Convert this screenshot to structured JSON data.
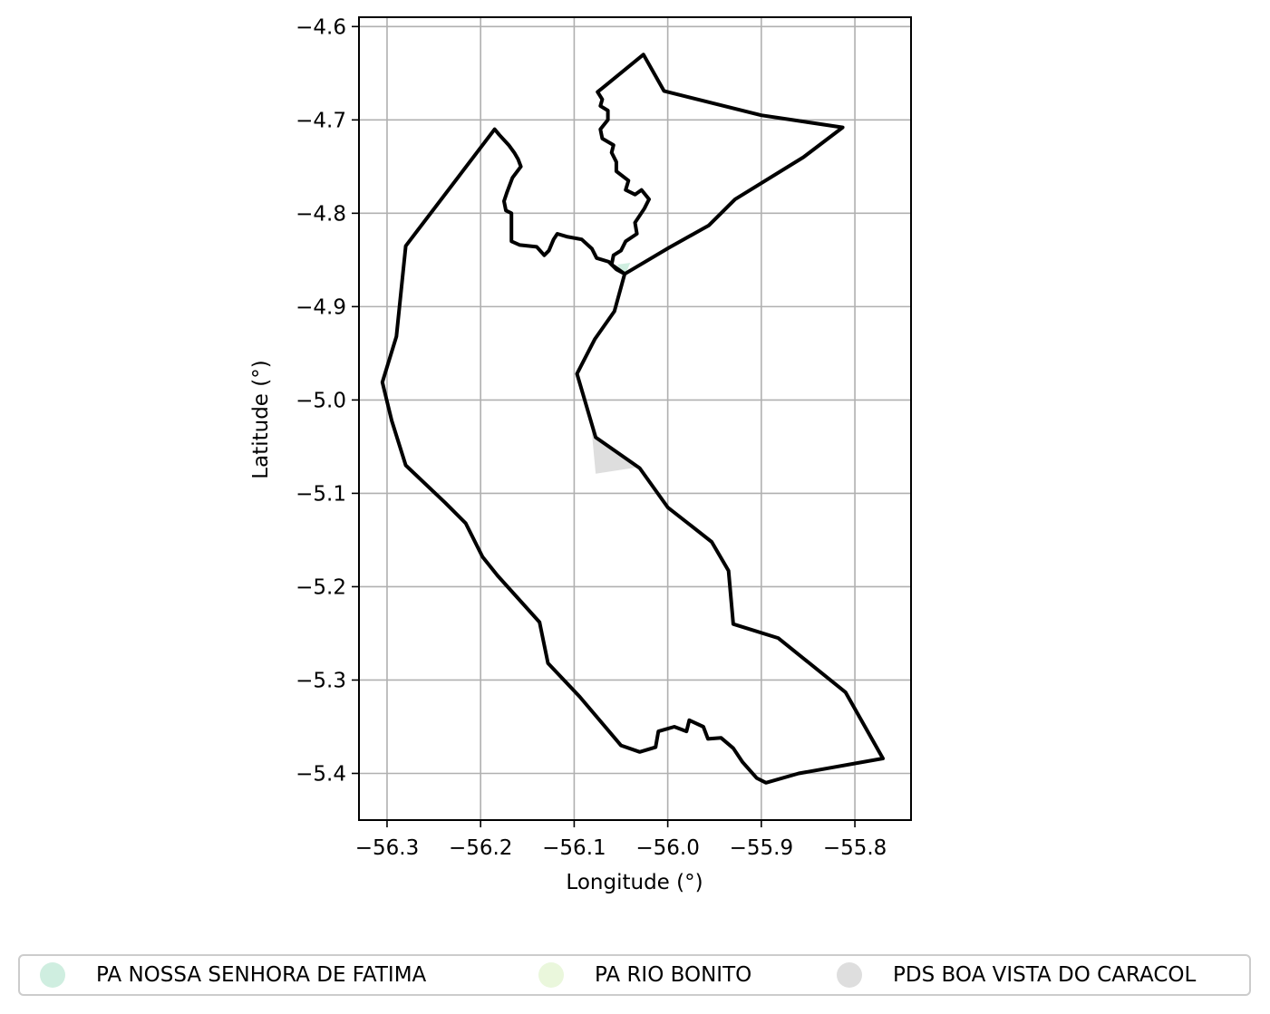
{
  "chart_data": {
    "type": "map",
    "xlabel": "Longitude (°)",
    "ylabel": "Latitude (°)",
    "xlim": [
      -56.33,
      -55.74
    ],
    "ylim": [
      -5.45,
      -4.59
    ],
    "x_ticks": [
      -56.3,
      -56.2,
      -56.1,
      -56.0,
      -55.9,
      -55.8
    ],
    "y_ticks": [
      -4.6,
      -4.7,
      -4.8,
      -4.9,
      -5.0,
      -5.1,
      -5.2,
      -5.3,
      -5.4
    ],
    "x_tick_labels": [
      "−56.3",
      "−56.2",
      "−56.1",
      "−56.0",
      "−55.9",
      "−55.8"
    ],
    "y_tick_labels": [
      "−4.6",
      "−4.7",
      "−4.8",
      "−4.9",
      "−5.0",
      "−5.1",
      "−5.2",
      "−5.3",
      "−5.4"
    ],
    "grid": true,
    "legend_position": "bottom",
    "boundaries": [
      {
        "name": "north",
        "coords": [
          [
            -56.07,
            -4.666
          ],
          [
            -56.026,
            -4.63
          ],
          [
            -56.004,
            -4.669
          ],
          [
            -55.9,
            -4.695
          ],
          [
            -55.813,
            -4.708
          ],
          [
            -55.855,
            -4.74
          ],
          [
            -55.928,
            -4.785
          ],
          [
            -55.956,
            -4.813
          ],
          [
            -55.999,
            -4.837
          ],
          [
            -56.046,
            -4.865
          ],
          [
            -56.06,
            -4.855
          ],
          [
            -56.058,
            -4.845
          ],
          [
            -56.05,
            -4.84
          ],
          [
            -56.045,
            -4.83
          ],
          [
            -56.033,
            -4.822
          ],
          [
            -56.035,
            -4.81
          ],
          [
            -56.025,
            -4.795
          ],
          [
            -56.02,
            -4.785
          ],
          [
            -56.028,
            -4.775
          ],
          [
            -56.035,
            -4.78
          ],
          [
            -56.045,
            -4.775
          ],
          [
            -56.042,
            -4.765
          ],
          [
            -56.055,
            -4.755
          ],
          [
            -56.055,
            -4.745
          ],
          [
            -56.06,
            -4.735
          ],
          [
            -56.058,
            -4.727
          ],
          [
            -56.07,
            -4.72
          ],
          [
            -56.072,
            -4.71
          ],
          [
            -56.064,
            -4.7
          ],
          [
            -56.064,
            -4.69
          ],
          [
            -56.072,
            -4.685
          ],
          [
            -56.07,
            -4.678
          ],
          [
            -56.075,
            -4.67
          ],
          [
            -56.07,
            -4.666
          ]
        ]
      },
      {
        "name": "main",
        "coords": [
          [
            -56.046,
            -4.865
          ],
          [
            -56.055,
            -4.86
          ],
          [
            -56.063,
            -4.852
          ],
          [
            -56.076,
            -4.848
          ],
          [
            -56.081,
            -4.838
          ],
          [
            -56.092,
            -4.828
          ],
          [
            -56.108,
            -4.825
          ],
          [
            -56.118,
            -4.822
          ],
          [
            -56.122,
            -4.828
          ],
          [
            -56.127,
            -4.84
          ],
          [
            -56.132,
            -4.845
          ],
          [
            -56.14,
            -4.836
          ],
          [
            -56.158,
            -4.834
          ],
          [
            -56.167,
            -4.83
          ],
          [
            -56.167,
            -4.8
          ],
          [
            -56.173,
            -4.797
          ],
          [
            -56.175,
            -4.787
          ],
          [
            -56.172,
            -4.778
          ],
          [
            -56.166,
            -4.762
          ],
          [
            -56.157,
            -4.75
          ],
          [
            -56.16,
            -4.742
          ],
          [
            -56.164,
            -4.735
          ],
          [
            -56.17,
            -4.727
          ],
          [
            -56.18,
            -4.716
          ],
          [
            -56.185,
            -4.71
          ],
          [
            -56.28,
            -4.835
          ],
          [
            -56.29,
            -4.932
          ],
          [
            -56.305,
            -4.981
          ],
          [
            -56.295,
            -5.022
          ],
          [
            -56.28,
            -5.07
          ],
          [
            -56.238,
            -5.11
          ],
          [
            -56.216,
            -5.132
          ],
          [
            -56.198,
            -5.168
          ],
          [
            -56.182,
            -5.188
          ],
          [
            -56.137,
            -5.238
          ],
          [
            -56.128,
            -5.282
          ],
          [
            -56.094,
            -5.318
          ],
          [
            -56.05,
            -5.37
          ],
          [
            -56.03,
            -5.377
          ],
          [
            -56.013,
            -5.372
          ],
          [
            -56.01,
            -5.355
          ],
          [
            -55.993,
            -5.35
          ],
          [
            -55.98,
            -5.355
          ],
          [
            -55.977,
            -5.343
          ],
          [
            -55.962,
            -5.35
          ],
          [
            -55.957,
            -5.363
          ],
          [
            -55.943,
            -5.362
          ],
          [
            -55.93,
            -5.373
          ],
          [
            -55.92,
            -5.388
          ],
          [
            -55.905,
            -5.405
          ],
          [
            -55.895,
            -5.41
          ],
          [
            -55.86,
            -5.4
          ],
          [
            -55.77,
            -5.384
          ],
          [
            -55.81,
            -5.313
          ],
          [
            -55.882,
            -5.255
          ],
          [
            -55.93,
            -5.24
          ],
          [
            -55.935,
            -5.183
          ],
          [
            -55.953,
            -5.152
          ],
          [
            -56.0,
            -5.115
          ],
          [
            -56.03,
            -5.073
          ],
          [
            -56.077,
            -5.04
          ],
          [
            -56.097,
            -4.972
          ],
          [
            -56.078,
            -4.935
          ],
          [
            -56.057,
            -4.905
          ],
          [
            -56.046,
            -4.865
          ]
        ]
      }
    ],
    "filled_areas": [
      {
        "name": "PA NOSSA SENHORA DE FATIMA",
        "color": "#cfeee0",
        "coords": [
          [
            -56.054,
            -4.855
          ],
          [
            -56.046,
            -4.867
          ],
          [
            -56.04,
            -4.853
          ]
        ]
      },
      {
        "name": "PDS BOA VISTA DO CARACOL",
        "color": "#dedede",
        "coords": [
          [
            -56.083,
            -5.015
          ],
          [
            -56.077,
            -5.079
          ],
          [
            -56.032,
            -5.072
          ],
          [
            -56.077,
            -5.04
          ]
        ]
      }
    ],
    "legend": [
      {
        "label": "PA NOSSA SENHORA DE FATIMA",
        "color": "#cfeee0"
      },
      {
        "label": "PA RIO BONITO",
        "color": "#eaf7dc"
      },
      {
        "label": "PDS BOA VISTA DO CARACOL",
        "color": "#dedede"
      }
    ]
  }
}
